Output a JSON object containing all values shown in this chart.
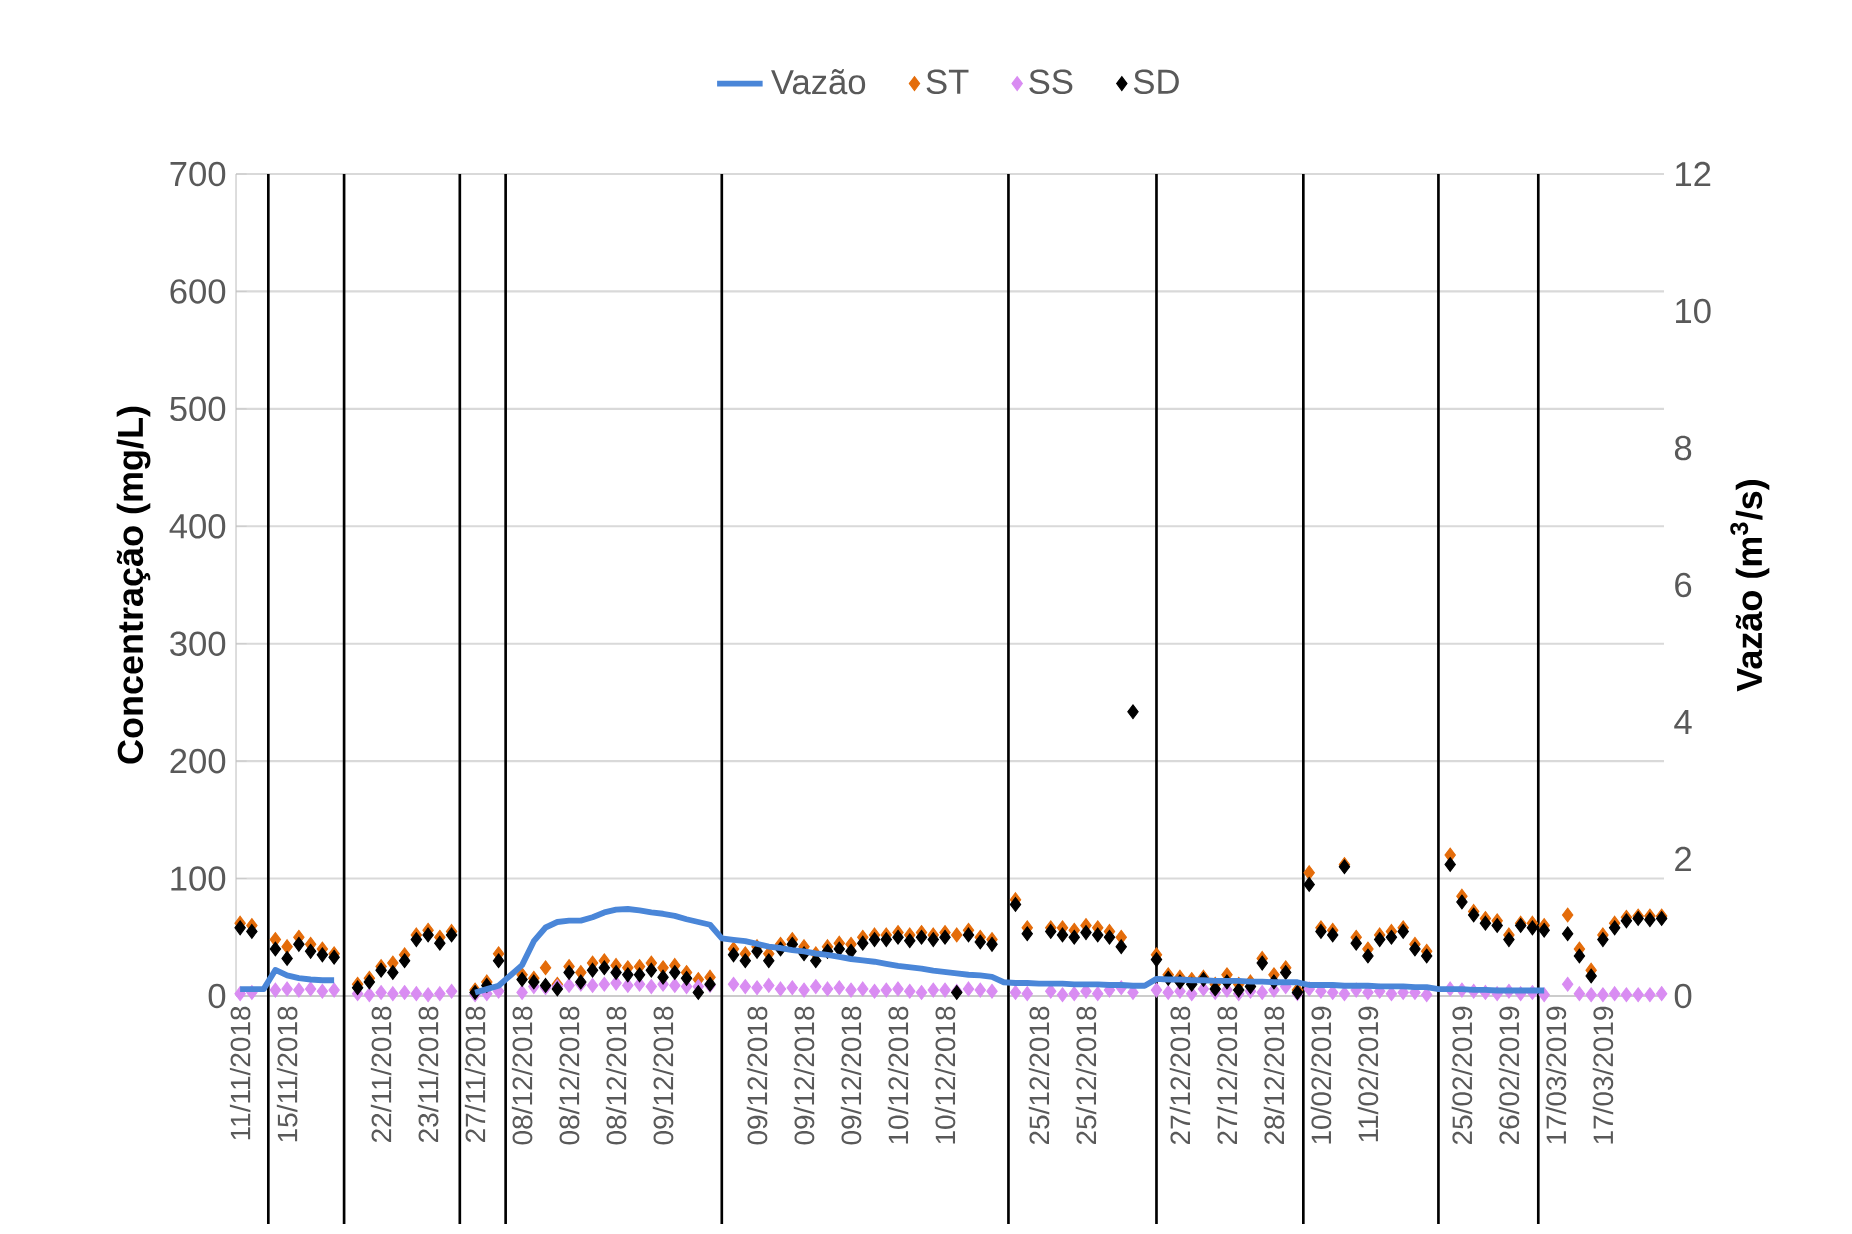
{
  "chart_data": {
    "type": "scatter",
    "categories": [
      "11/11/2018",
      null,
      null,
      null,
      "15/11/2018",
      null,
      null,
      null,
      null,
      null,
      null,
      null,
      "22/11/2018",
      null,
      null,
      null,
      "23/11/2018",
      null,
      null,
      null,
      "27/11/2018",
      null,
      null,
      null,
      "08/12/2018",
      null,
      null,
      null,
      "08/12/2018",
      null,
      null,
      null,
      "08/12/2018",
      null,
      null,
      null,
      "09/12/2018",
      null,
      null,
      null,
      null,
      null,
      null,
      null,
      "09/12/2018",
      null,
      null,
      null,
      "09/12/2018",
      null,
      null,
      null,
      "09/12/2018",
      null,
      null,
      null,
      "10/12/2018",
      null,
      null,
      null,
      "10/12/2018",
      null,
      null,
      null,
      null,
      null,
      null,
      null,
      "25/12/2018",
      null,
      null,
      null,
      "25/12/2018",
      null,
      null,
      null,
      null,
      null,
      null,
      null,
      "27/12/2018",
      null,
      null,
      null,
      "27/12/2018",
      null,
      null,
      null,
      "28/12/2018",
      null,
      null,
      null,
      "10/02/2019",
      null,
      null,
      null,
      "11/02/2019",
      null,
      null,
      null,
      null,
      null,
      null,
      null,
      "25/02/2019",
      null,
      null,
      null,
      "26/02/2019",
      null,
      null,
      null,
      "17/03/2019",
      null,
      null,
      null,
      "17/03/2019",
      null,
      null,
      null,
      null,
      null
    ],
    "series": [
      {
        "name": "Vazão",
        "type": "line",
        "axis": "y2",
        "color": "#4a86d8",
        "values": [
          0.1,
          0.1,
          0.1,
          0.38,
          0.3,
          0.26,
          0.24,
          0.23,
          0.23,
          null,
          null,
          null,
          null,
          null,
          null,
          null,
          null,
          null,
          null,
          null,
          0.05,
          0.1,
          0.15,
          0.3,
          0.45,
          0.8,
          1.0,
          1.08,
          1.1,
          1.1,
          1.15,
          1.22,
          1.26,
          1.27,
          1.25,
          1.22,
          1.2,
          1.17,
          1.12,
          1.08,
          1.04,
          0.84,
          0.82,
          0.8,
          0.76,
          0.72,
          0.7,
          0.67,
          0.65,
          0.62,
          0.6,
          0.57,
          0.54,
          0.52,
          0.5,
          0.47,
          0.44,
          0.42,
          0.4,
          0.37,
          0.35,
          0.33,
          0.31,
          0.3,
          0.28,
          0.2,
          0.19,
          0.19,
          0.18,
          0.18,
          0.18,
          0.17,
          0.17,
          0.17,
          0.16,
          0.16,
          0.15,
          0.15,
          0.25,
          0.24,
          0.24,
          0.23,
          0.23,
          0.22,
          0.22,
          0.22,
          0.21,
          0.21,
          0.2,
          0.2,
          0.2,
          0.16,
          0.16,
          0.16,
          0.15,
          0.15,
          0.15,
          0.14,
          0.14,
          0.14,
          0.13,
          0.13,
          0.1,
          0.1,
          0.1,
          0.09,
          0.09,
          0.08,
          0.08,
          0.08,
          0.08,
          0.08,
          null,
          null,
          null,
          null,
          null,
          null,
          null,
          null,
          null,
          null
        ]
      },
      {
        "name": "ST",
        "marker": "diamond",
        "color": "#e46c0a",
        "values": [
          62,
          60,
          null,
          48,
          42,
          50,
          44,
          40,
          36,
          null,
          10,
          15,
          25,
          28,
          35,
          52,
          56,
          50,
          55,
          null,
          5,
          12,
          36,
          null,
          18,
          15,
          24,
          10,
          25,
          20,
          28,
          30,
          26,
          24,
          25,
          28,
          24,
          26,
          20,
          14,
          16,
          null,
          40,
          36,
          42,
          36,
          44,
          48,
          42,
          36,
          42,
          45,
          44,
          50,
          52,
          52,
          54,
          52,
          54,
          52,
          54,
          52,
          56,
          50,
          48,
          null,
          82,
          58,
          null,
          58,
          58,
          56,
          60,
          58,
          55,
          50,
          null,
          null,
          35,
          18,
          16,
          14,
          16,
          10,
          18,
          10,
          12,
          32,
          18,
          24,
          5,
          105,
          58,
          56,
          112,
          50,
          40,
          52,
          55,
          58,
          44,
          38,
          null,
          120,
          85,
          72,
          66,
          64,
          52,
          62,
          62,
          60,
          null,
          69,
          40,
          22,
          52,
          62,
          67,
          68,
          68,
          68
        ]
      },
      {
        "name": "SS",
        "marker": "diamond",
        "color": "#d98cf2",
        "values": [
          2,
          3,
          null,
          5,
          6,
          5,
          6,
          4,
          5,
          null,
          2,
          1,
          3,
          2,
          3,
          2,
          1,
          2,
          4,
          null,
          1,
          2,
          4,
          null,
          3,
          8,
          7,
          8,
          9,
          10,
          9,
          10,
          11,
          9,
          10,
          8,
          10,
          9,
          8,
          8,
          9,
          null,
          10,
          8,
          7,
          9,
          6,
          7,
          5,
          8,
          6,
          7,
          5,
          6,
          4,
          5,
          6,
          4,
          3,
          5,
          5,
          4,
          6,
          5,
          4,
          null,
          3,
          2,
          null,
          4,
          1,
          2,
          4,
          2,
          5,
          7,
          3,
          null,
          5,
          3,
          4,
          2,
          6,
          3,
          5,
          2,
          4,
          3,
          5,
          8,
          2,
          6,
          4,
          3,
          2,
          5,
          3,
          4,
          2,
          3,
          3,
          1,
          null,
          6,
          5,
          4,
          3,
          2,
          4,
          2,
          3,
          1,
          null,
          10,
          2,
          1,
          1,
          2,
          1,
          1,
          1,
          2
        ]
      },
      {
        "name": "SD",
        "marker": "diamond",
        "color": "#000000",
        "values": [
          58,
          55,
          null,
          40,
          32,
          44,
          38,
          35,
          33,
          null,
          7,
          12,
          22,
          20,
          30,
          48,
          52,
          45,
          52,
          null,
          3,
          9,
          30,
          null,
          14,
          12,
          9,
          6,
          20,
          12,
          22,
          24,
          20,
          18,
          18,
          22,
          16,
          20,
          15,
          3,
          10,
          null,
          35,
          30,
          38,
          30,
          40,
          44,
          36,
          30,
          38,
          40,
          38,
          45,
          48,
          48,
          50,
          47,
          50,
          48,
          50,
          3,
          52,
          46,
          44,
          null,
          78,
          53,
          null,
          55,
          52,
          50,
          54,
          52,
          50,
          42,
          242,
          null,
          31,
          15,
          12,
          10,
          14,
          6,
          12,
          5,
          8,
          28,
          12,
          20,
          3,
          95,
          55,
          52,
          110,
          45,
          34,
          48,
          50,
          55,
          40,
          34,
          null,
          112,
          80,
          69,
          62,
          60,
          48,
          60,
          58,
          56,
          null,
          53,
          34,
          17,
          48,
          58,
          64,
          66,
          65,
          66
        ]
      }
    ],
    "ylabel": "Concentração (mg/L)",
    "y2label": "Vazão (m$^{3}$/s)",
    "ylim": [
      0,
      700
    ],
    "yticks": [
      0,
      100,
      200,
      300,
      400,
      500,
      600,
      700
    ],
    "y2lim": [
      0,
      12
    ],
    "y2ticks": [
      0,
      2,
      4,
      6,
      8,
      10,
      12
    ],
    "grid": "y",
    "legend": "top"
  }
}
